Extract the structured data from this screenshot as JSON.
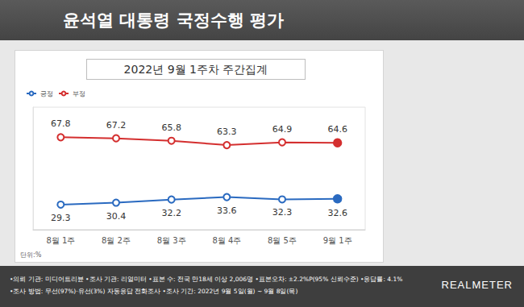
{
  "chart_data": {
    "type": "line",
    "title": "윤석열 대통령 국정수행 평가",
    "subtitle": "2022년 9월 1주차 주간집계",
    "categories": [
      "8월 1주",
      "8월 2주",
      "8월 3주",
      "8월 4주",
      "8월 5주",
      "9월 1주"
    ],
    "series": [
      {
        "name": "긍정",
        "color": "#2a6ac0",
        "values": [
          29.3,
          30.4,
          32.2,
          33.6,
          32.3,
          32.6
        ]
      },
      {
        "name": "부정",
        "color": "#d42f2f",
        "values": [
          67.8,
          67.2,
          65.8,
          63.3,
          64.9,
          64.6
        ]
      }
    ],
    "ylim": [
      15,
      85
    ],
    "grid": false,
    "legend": "upper left",
    "data_labels": true,
    "tick_labels": "x",
    "marker": "circle",
    "annotations": [
      "단위:%"
    ]
  },
  "footer": {
    "notes": [
      "•의뢰 기관: 미디어트리뷴 •조사 기관: 리얼미터 •표본 수: 전국 만18세 이상 2,006명 •표본오차: ±2.2%P(95% 신뢰수준) •응답률: 4.1%",
      "•조사 방법: 무선(97%)·유선(3%) 자동응답 전화조사 •조사 기간: 2022년 9월 5일(월) ~ 9월 8일(목)"
    ],
    "brand": "REALMETER"
  }
}
